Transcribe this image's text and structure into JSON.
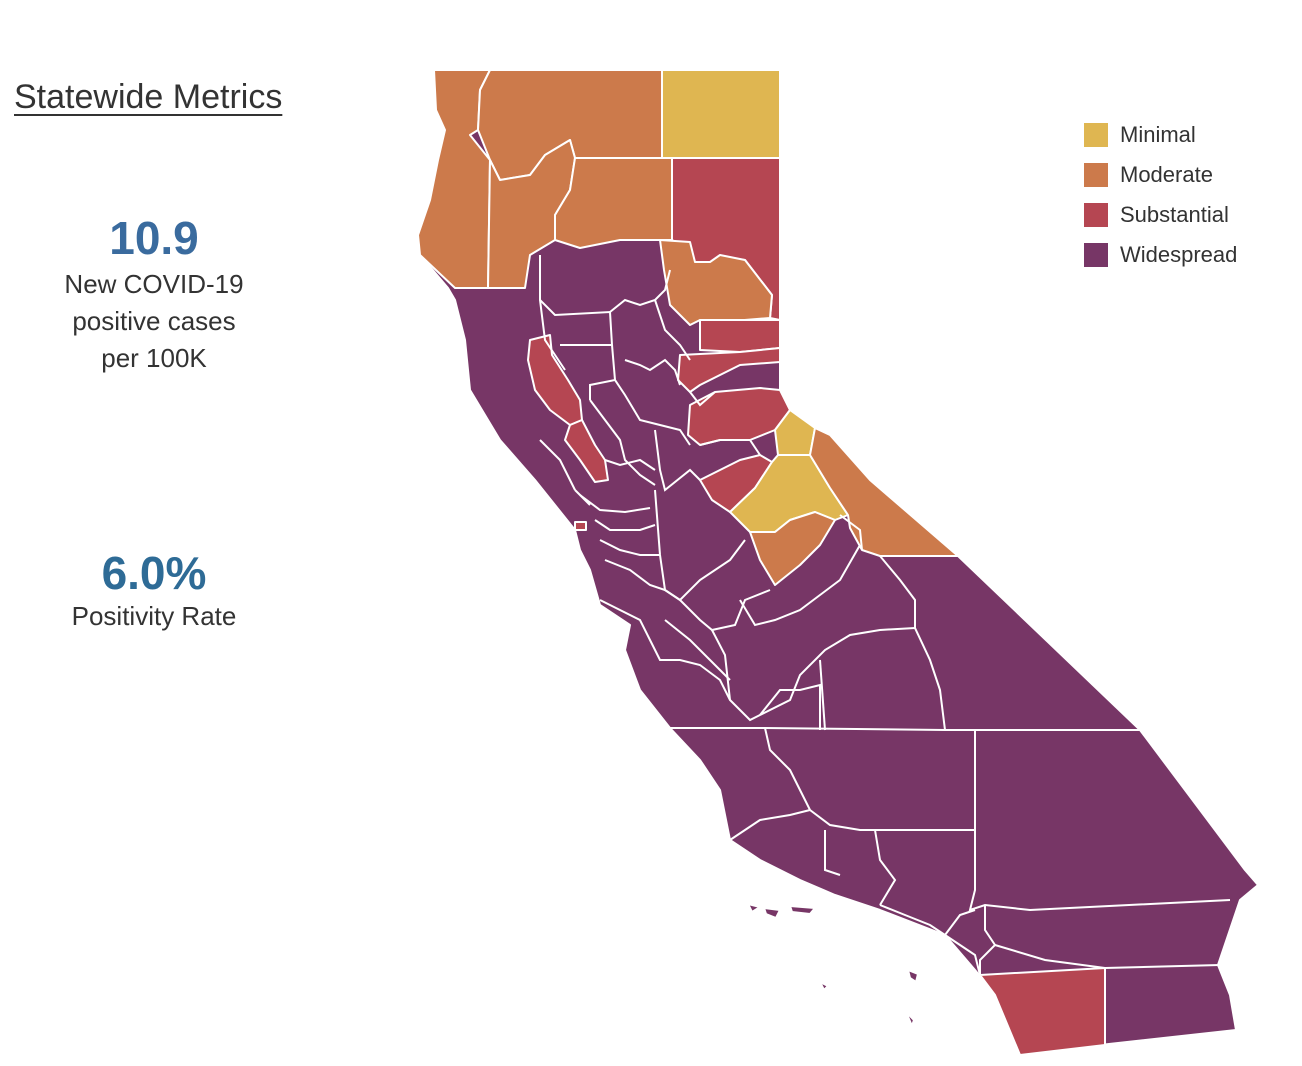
{
  "title": "Statewide Metrics",
  "metrics": {
    "cases": {
      "value": "10.9",
      "label_lines": [
        "New COVID-19",
        "positive cases",
        "per 100K"
      ]
    },
    "positivity": {
      "value": "6.0%",
      "label": "Positivity Rate"
    }
  },
  "legend": [
    {
      "label": "Minimal",
      "color": "#dfb651"
    },
    {
      "label": "Moderate",
      "color": "#cc7a4b"
    },
    {
      "label": "Substantial",
      "color": "#b54652"
    },
    {
      "label": "Widespread",
      "color": "#773666"
    }
  ],
  "colors": {
    "minimal": "#dfb651",
    "moderate": "#cc7a4b",
    "substantial": "#b54652",
    "widespread": "#773666",
    "border": "#ffffff"
  }
}
